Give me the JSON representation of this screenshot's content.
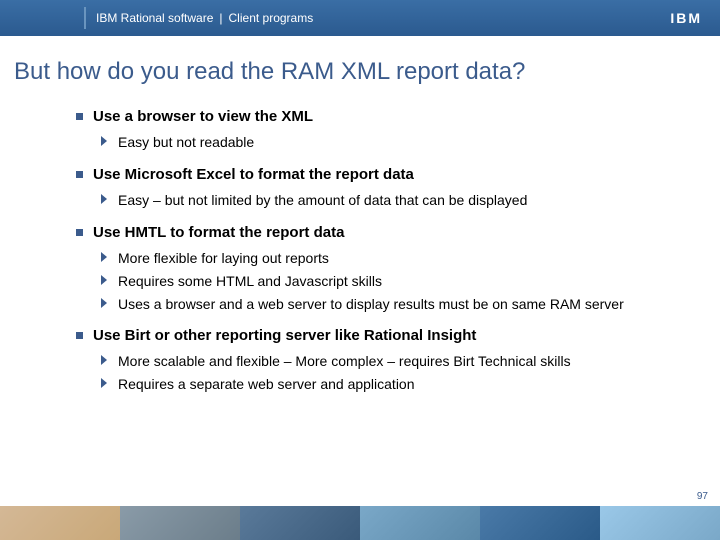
{
  "header": {
    "brand": "IBM Rational software",
    "section": "Client programs",
    "logo_text": "IBM"
  },
  "title": "But how do you read the RAM XML report data?",
  "bullets": [
    {
      "text": "Use a browser to view the XML",
      "subs": [
        "Easy but not readable"
      ]
    },
    {
      "text": "Use Microsoft Excel to format the report data",
      "subs": [
        "Easy – but not limited by the amount of data that can be displayed"
      ]
    },
    {
      "text": "Use HMTL to format the report data",
      "subs": [
        "More flexible for laying out reports",
        "Requires some HTML and Javascript skills",
        "Uses a browser and a web server to display results must be on same RAM server"
      ]
    },
    {
      "text": "Use Birt or other reporting server like Rational Insight",
      "subs": [
        "More scalable and flexible – More complex – requires Birt Technical skills",
        "Requires a separate web server and application"
      ]
    }
  ],
  "page_number": "97",
  "colors": {
    "header_bg": "#2b5a8f",
    "accent": "#3b5b8c",
    "arrow": "#3b5b8c"
  }
}
